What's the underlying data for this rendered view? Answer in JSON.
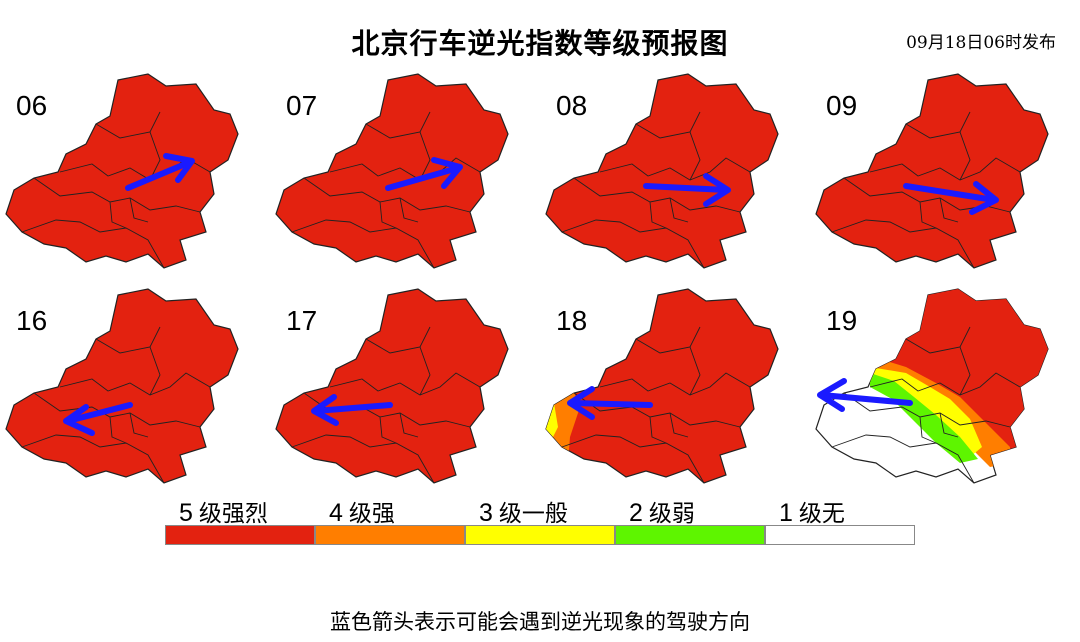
{
  "title": "北京行车逆光指数等级预报图",
  "issued": "09月18日06时发布",
  "legend": [
    {
      "level": "5",
      "label": "级强烈",
      "color": "#e32210"
    },
    {
      "level": "4",
      "label": "级强",
      "color": "#ff7e00"
    },
    {
      "level": "3",
      "label": "级一般",
      "color": "#ffff00"
    },
    {
      "level": "2",
      "label": "级弱",
      "color": "#5ef500"
    },
    {
      "level": "1",
      "label": "级无",
      "color": "#ffffff"
    }
  ],
  "panels": [
    {
      "hour": "06",
      "arrow_direction": "east-northeast"
    },
    {
      "hour": "07",
      "arrow_direction": "east-northeast"
    },
    {
      "hour": "08",
      "arrow_direction": "east"
    },
    {
      "hour": "09",
      "arrow_direction": "east-southeast"
    },
    {
      "hour": "16",
      "arrow_direction": "west-southwest"
    },
    {
      "hour": "17",
      "arrow_direction": "west"
    },
    {
      "hour": "18",
      "arrow_direction": "west"
    },
    {
      "hour": "19",
      "arrow_direction": "west-northwest"
    }
  ],
  "note": "蓝色箭头表示可能会遇到逆光现象的驾驶方向",
  "colors": {
    "arrow": "#1a1aff",
    "boundary": "#222222"
  }
}
